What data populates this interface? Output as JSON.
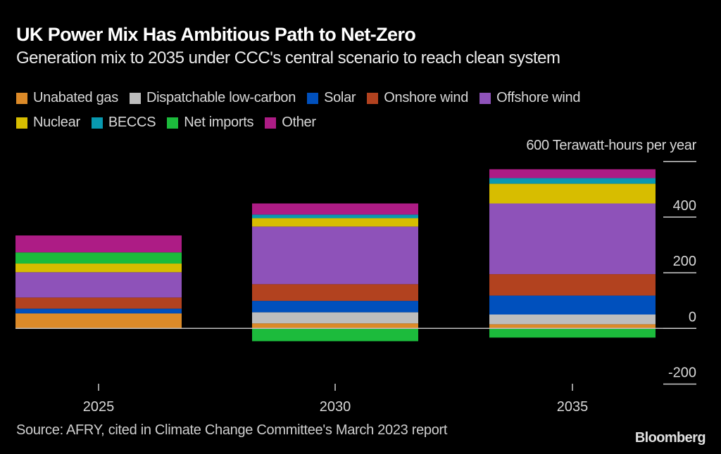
{
  "chart_data": {
    "type": "bar",
    "stacked": true,
    "title": "UK Power Mix Has Ambitious Path to Net-Zero",
    "subtitle": "Generation mix to 2035 under CCC's central scenario to reach clean system",
    "ylabel": "Terawatt-hours per year",
    "xlabel": "",
    "categories": [
      "2025",
      "2030",
      "2035"
    ],
    "ylim": [
      -200,
      600
    ],
    "yticks": [
      600,
      400,
      200,
      0,
      -200
    ],
    "ytick_labels": [
      "600",
      "400",
      "200",
      "0",
      "-200"
    ],
    "grid": false,
    "legend_position": "top",
    "series": [
      {
        "name": "Unabated gas",
        "color": "#dc8a28",
        "values": [
          54,
          18,
          15
        ]
      },
      {
        "name": "Dispatchable low-carbon",
        "color": "#bdbdbd",
        "values": [
          0,
          40,
          35
        ]
      },
      {
        "name": "Solar",
        "color": "#0050bd",
        "values": [
          17,
          41,
          68
        ]
      },
      {
        "name": "Onshore wind",
        "color": "#b2421f",
        "values": [
          40,
          60,
          77
        ]
      },
      {
        "name": "Offshore wind",
        "color": "#8e52b9",
        "values": [
          91,
          207,
          254
        ]
      },
      {
        "name": "Nuclear",
        "color": "#d7bd00",
        "values": [
          31,
          30,
          71
        ]
      },
      {
        "name": "BECCS",
        "color": "#0899b0",
        "values": [
          0,
          13,
          20
        ]
      },
      {
        "name": "Net imports",
        "color": "#1cbb3c",
        "values": [
          40,
          -46,
          -33
        ]
      },
      {
        "name": "Other",
        "color": "#ad1c85",
        "values": [
          61,
          40,
          32
        ]
      }
    ]
  },
  "header": {
    "title": "UK Power Mix Has Ambitious Path to Net-Zero",
    "subtitle": "Generation mix to 2035 under CCC's central scenario to reach clean system"
  },
  "legend": {
    "rows": [
      [
        {
          "label": "Unabated gas",
          "color": "#dc8a28"
        },
        {
          "label": "Dispatchable low-carbon",
          "color": "#bdbdbd"
        },
        {
          "label": "Solar",
          "color": "#0050bd"
        },
        {
          "label": "Onshore wind",
          "color": "#b2421f"
        },
        {
          "label": "Offshore wind",
          "color": "#8e52b9"
        }
      ],
      [
        {
          "label": "Nuclear",
          "color": "#d7bd00"
        },
        {
          "label": "BECCS",
          "color": "#0899b0"
        },
        {
          "label": "Net imports",
          "color": "#1cbb3c"
        },
        {
          "label": "Other",
          "color": "#ad1c85"
        }
      ]
    ]
  },
  "axis": {
    "units_label": "600 Terawatt-hours per year"
  },
  "footer": {
    "source": "Source: AFRY, cited in Climate Change Committee's March 2023 report",
    "brand": "Bloomberg"
  },
  "colors": {
    "background": "#000000",
    "axis_line": "#bfbfbf",
    "text": "#d8d8d8"
  }
}
